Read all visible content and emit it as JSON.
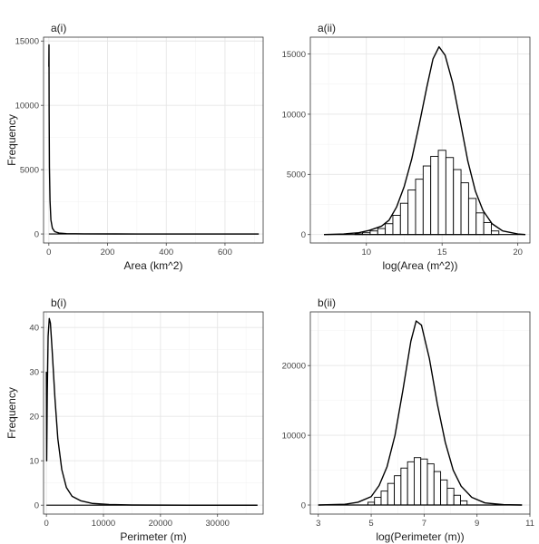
{
  "chart_data": [
    {
      "tag": "a(i)",
      "type": "line",
      "xlabel": "Area (km^2)",
      "ylabel": "Frequency",
      "xlim": [
        -18,
        730
      ],
      "ylim": [
        -700,
        15300
      ],
      "xticks": [
        0,
        200,
        400,
        600
      ],
      "yticks": [
        0,
        5000,
        10000,
        15000
      ],
      "series": [
        {
          "x": [
            0,
            0.5,
            1,
            2,
            4,
            7,
            12,
            20,
            35,
            60,
            120,
            300,
            500,
            715
          ],
          "y": [
            13000,
            14700,
            9500,
            5200,
            2600,
            1100,
            450,
            180,
            70,
            30,
            10,
            3,
            1,
            0
          ]
        }
      ]
    },
    {
      "tag": "a(ii)",
      "type": "bar",
      "xlabel": "log(Area (m^2))",
      "ylabel": "",
      "xlim": [
        6.3,
        20.8
      ],
      "ylim": [
        -700,
        16400
      ],
      "xticks": [
        10,
        15,
        20
      ],
      "yticks": [
        0,
        5000,
        10000,
        15000
      ],
      "bins": {
        "centers": [
          9.5,
          10.0,
          10.5,
          11.0,
          11.5,
          12.0,
          12.5,
          13.0,
          13.5,
          14.0,
          14.5,
          15.0,
          15.5,
          16.0,
          16.5,
          17.0,
          17.5,
          18.0,
          18.5
        ],
        "width": 0.5,
        "values": [
          60,
          150,
          300,
          500,
          900,
          1600,
          2600,
          3700,
          4600,
          5700,
          6500,
          7000,
          6400,
          5400,
          4300,
          3000,
          1800,
          1000,
          300
        ]
      },
      "series": [
        {
          "x": [
            7.2,
            8.5,
            9.5,
            10.2,
            11.0,
            11.5,
            12.0,
            12.5,
            13.0,
            13.5,
            14.0,
            14.4,
            14.8,
            15.2,
            15.7,
            16.2,
            16.7,
            17.2,
            17.7,
            18.3,
            19.0,
            20.0,
            20.5
          ],
          "y": [
            0,
            50,
            150,
            350,
            700,
            1200,
            2300,
            4000,
            6300,
            9200,
            12300,
            14600,
            15600,
            14900,
            12600,
            9400,
            6100,
            3600,
            2000,
            900,
            300,
            50,
            0
          ]
        }
      ]
    },
    {
      "tag": "b(i)",
      "type": "line",
      "xlabel": "Perimeter (m)",
      "ylabel": "Frequency",
      "xlim": [
        -500,
        38000
      ],
      "ylim": [
        -2,
        43.5
      ],
      "xticks": [
        0,
        10000,
        20000,
        30000
      ],
      "yticks": [
        0,
        10,
        20,
        30,
        40
      ],
      "series": [
        {
          "x": [
            0,
            50,
            150,
            300,
            500,
            700,
            1000,
            1500,
            2000,
            2700,
            3500,
            4500,
            6000,
            8000,
            11000,
            15000,
            25000,
            37000
          ],
          "y": [
            30,
            10,
            25,
            38,
            42,
            41,
            35,
            24,
            15,
            8,
            4,
            2,
            1,
            0.4,
            0.15,
            0.05,
            0.01,
            0
          ]
        }
      ]
    },
    {
      "tag": "b(ii)",
      "type": "bar",
      "xlabel": "log(Perimeter (m))",
      "ylabel": "",
      "xlim": [
        2.7,
        11.0
      ],
      "ylim": [
        -1300,
        27700
      ],
      "xticks": [
        3,
        5,
        7,
        9,
        11
      ],
      "yticks": [
        0,
        10000,
        20000
      ],
      "bins": {
        "centers": [
          5.0,
          5.25,
          5.5,
          5.75,
          6.0,
          6.25,
          6.5,
          6.75,
          7.0,
          7.25,
          7.5,
          7.75,
          8.0,
          8.25,
          8.5
        ],
        "width": 0.25,
        "values": [
          400,
          1100,
          2000,
          3100,
          4200,
          5300,
          6200,
          6800,
          6600,
          5900,
          4800,
          3600,
          2400,
          1400,
          600
        ]
      },
      "series": [
        {
          "x": [
            3.0,
            4.0,
            4.5,
            5.0,
            5.3,
            5.6,
            5.9,
            6.2,
            6.5,
            6.7,
            6.9,
            7.2,
            7.5,
            7.8,
            8.1,
            8.4,
            8.8,
            9.3,
            10.0,
            10.7
          ],
          "y": [
            0,
            100,
            400,
            1200,
            2800,
            5500,
            10000,
            16500,
            23500,
            26400,
            25800,
            21000,
            14500,
            9000,
            5000,
            2700,
            1100,
            300,
            50,
            0
          ]
        }
      ]
    }
  ]
}
